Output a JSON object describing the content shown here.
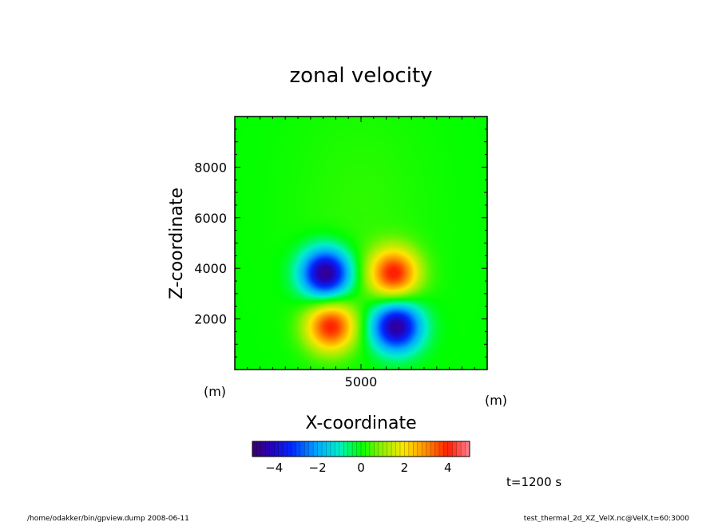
{
  "chart_data": {
    "type": "heatmap",
    "title": "zonal velocity",
    "xlabel": "X-coordinate",
    "ylabel": "Z-coordinate",
    "x_unit": "(m)",
    "y_unit": "(m)",
    "xlim": [
      0,
      10000
    ],
    "ylim": [
      0,
      10000
    ],
    "x_ticks": [
      5000
    ],
    "y_ticks": [
      2000,
      4000,
      6000,
      8000
    ],
    "field": {
      "background": 0.3,
      "extrema": [
        {
          "x": 3600,
          "z": 3800,
          "value": -4.8
        },
        {
          "x": 6300,
          "z": 3800,
          "value": 3.9
        },
        {
          "x": 3800,
          "z": 1700,
          "value": 3.9
        },
        {
          "x": 6400,
          "z": 1700,
          "value": -4.6
        }
      ]
    },
    "colorbar": {
      "min": -5,
      "max": 5,
      "ticks": [
        -4,
        -2,
        0,
        2,
        4
      ],
      "colormap": "rainbow"
    },
    "annotation": "t=1200 s"
  },
  "footer": {
    "left": "/home/odakker/bin/gpview.dump  2008-06-11",
    "right": "test_thermal_2d_XZ_VelX.nc@VelX,t=60:3000"
  }
}
